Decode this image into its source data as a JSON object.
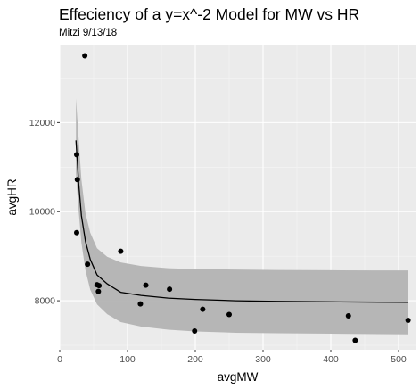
{
  "chart_data": {
    "type": "scatter",
    "title": "Effeciency of a y=x^-2 Model for MW vs HR",
    "subtitle": "Mitzi 9/13/18",
    "xlabel": "avgMW",
    "ylabel": "avgHR",
    "xlim": [
      0,
      525
    ],
    "ylim": [
      6900,
      13750
    ],
    "x_ticks": [
      0,
      100,
      200,
      300,
      400,
      500
    ],
    "y_ticks": [
      8000,
      10000,
      12000
    ],
    "grid": true,
    "points": [
      {
        "x": 37,
        "y": 13500
      },
      {
        "x": 25,
        "y": 11280
      },
      {
        "x": 26,
        "y": 10720
      },
      {
        "x": 25,
        "y": 9530
      },
      {
        "x": 41,
        "y": 8820
      },
      {
        "x": 90,
        "y": 9110
      },
      {
        "x": 55,
        "y": 8360
      },
      {
        "x": 58,
        "y": 8340
      },
      {
        "x": 57,
        "y": 8210
      },
      {
        "x": 127,
        "y": 8350
      },
      {
        "x": 162,
        "y": 8260
      },
      {
        "x": 119,
        "y": 7930
      },
      {
        "x": 211,
        "y": 7810
      },
      {
        "x": 250,
        "y": 7690
      },
      {
        "x": 199,
        "y": 7320
      },
      {
        "x": 426,
        "y": 7660
      },
      {
        "x": 436,
        "y": 7110
      },
      {
        "x": 514,
        "y": 7560
      }
    ],
    "fit_line": [
      {
        "x": 24,
        "y": 11600
      },
      {
        "x": 28,
        "y": 10620
      },
      {
        "x": 32,
        "y": 9910
      },
      {
        "x": 38,
        "y": 9330
      },
      {
        "x": 45,
        "y": 8930
      },
      {
        "x": 55,
        "y": 8580
      },
      {
        "x": 70,
        "y": 8380
      },
      {
        "x": 90,
        "y": 8190
      },
      {
        "x": 120,
        "y": 8120
      },
      {
        "x": 160,
        "y": 8060
      },
      {
        "x": 200,
        "y": 8030
      },
      {
        "x": 260,
        "y": 8000
      },
      {
        "x": 320,
        "y": 7985
      },
      {
        "x": 400,
        "y": 7975
      },
      {
        "x": 470,
        "y": 7968
      },
      {
        "x": 514,
        "y": 7965
      }
    ],
    "confidence_band": [
      {
        "x": 24,
        "lo": 10850,
        "hi": 12540
      },
      {
        "x": 28,
        "lo": 10000,
        "hi": 11600
      },
      {
        "x": 32,
        "lo": 9300,
        "hi": 10720
      },
      {
        "x": 38,
        "lo": 8680,
        "hi": 9960
      },
      {
        "x": 45,
        "lo": 8250,
        "hi": 9530
      },
      {
        "x": 55,
        "lo": 7920,
        "hi": 9180
      },
      {
        "x": 70,
        "lo": 7700,
        "hi": 8990
      },
      {
        "x": 90,
        "lo": 7520,
        "hi": 8860
      },
      {
        "x": 120,
        "lo": 7420,
        "hi": 8780
      },
      {
        "x": 160,
        "lo": 7350,
        "hi": 8730
      },
      {
        "x": 200,
        "lo": 7310,
        "hi": 8710
      },
      {
        "x": 260,
        "lo": 7280,
        "hi": 8700
      },
      {
        "x": 320,
        "lo": 7270,
        "hi": 8690
      },
      {
        "x": 400,
        "lo": 7260,
        "hi": 8685
      },
      {
        "x": 470,
        "lo": 7250,
        "hi": 8680
      },
      {
        "x": 514,
        "lo": 7245,
        "hi": 8680
      }
    ],
    "colors": {
      "panel": "#ebebeb",
      "grid_major": "#ffffff",
      "grid_minor": "#f5f5f5",
      "band": "#b3b3b3",
      "line": "#000000",
      "point": "#000000"
    }
  }
}
